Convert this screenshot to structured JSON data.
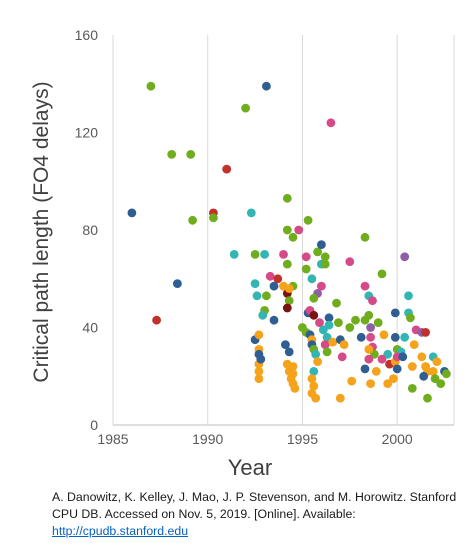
{
  "chart_data": {
    "type": "scatter",
    "xlabel": "Year",
    "ylabel": "Critical path length (FO4 delays)",
    "xlim": [
      1985,
      2003
    ],
    "ylim": [
      0,
      160
    ],
    "xticks": [
      1985,
      1990,
      1995,
      2000
    ],
    "yticks": [
      0,
      40,
      80,
      120,
      160
    ],
    "grid": "vertical",
    "legend": "none",
    "colors": {
      "blue": "#2e5e92",
      "green": "#70ad1e",
      "red": "#c0312b",
      "teal": "#33b5b3",
      "magenta": "#d64a88",
      "orange": "#f5a31a",
      "purple": "#8e5fa6",
      "dark": "#7a1414"
    },
    "points": [
      [
        1986.0,
        87,
        "blue"
      ],
      [
        1987.0,
        139,
        "green"
      ],
      [
        1987.3,
        43,
        "red"
      ],
      [
        1988.1,
        111,
        "green"
      ],
      [
        1988.4,
        58,
        "blue"
      ],
      [
        1989.1,
        111,
        "green"
      ],
      [
        1989.2,
        84,
        "green"
      ],
      [
        1990.3,
        87,
        "red"
      ],
      [
        1990.3,
        85,
        "green"
      ],
      [
        1991.0,
        105,
        "red"
      ],
      [
        1991.4,
        70,
        "teal"
      ],
      [
        1992.0,
        130,
        "green"
      ],
      [
        1992.3,
        87,
        "teal"
      ],
      [
        1992.5,
        70,
        "green"
      ],
      [
        1993.1,
        139,
        "blue"
      ],
      [
        1993.0,
        70,
        "teal"
      ],
      [
        1993.3,
        61,
        "magenta"
      ],
      [
        1993.5,
        57,
        "blue"
      ],
      [
        1993.1,
        53,
        "green"
      ],
      [
        1993.7,
        60,
        "red"
      ],
      [
        1992.5,
        58,
        "teal"
      ],
      [
        1992.6,
        53,
        "teal"
      ],
      [
        1992.5,
        35,
        "blue"
      ],
      [
        1993.0,
        47,
        "green"
      ],
      [
        1993.5,
        43,
        "blue"
      ],
      [
        1992.9,
        45,
        "teal"
      ],
      [
        1992.7,
        37,
        "orange"
      ],
      [
        1992.7,
        31,
        "orange"
      ],
      [
        1992.7,
        29,
        "blue"
      ],
      [
        1992.7,
        25,
        "orange"
      ],
      [
        1992.7,
        22,
        "orange"
      ],
      [
        1992.7,
        19,
        "orange"
      ],
      [
        1992.8,
        27,
        "blue"
      ],
      [
        1994.2,
        93,
        "green"
      ],
      [
        1994.2,
        80,
        "green"
      ],
      [
        1994.5,
        77,
        "green"
      ],
      [
        1994.8,
        80,
        "magenta"
      ],
      [
        1994.0,
        70,
        "magenta"
      ],
      [
        1994.2,
        66,
        "green"
      ],
      [
        1994.5,
        57,
        "green"
      ],
      [
        1994.2,
        54,
        "dark"
      ],
      [
        1994.0,
        57,
        "orange"
      ],
      [
        1994.3,
        56,
        "orange"
      ],
      [
        1994.3,
        51,
        "green"
      ],
      [
        1994.2,
        48,
        "dark"
      ],
      [
        1994.1,
        33,
        "blue"
      ],
      [
        1994.3,
        30,
        "blue"
      ],
      [
        1994.2,
        25,
        "orange"
      ],
      [
        1994.5,
        24,
        "orange"
      ],
      [
        1994.3,
        22,
        "orange"
      ],
      [
        1994.4,
        19,
        "orange"
      ],
      [
        1994.5,
        17,
        "orange"
      ],
      [
        1994.6,
        15,
        "orange"
      ],
      [
        1994.5,
        21,
        "orange"
      ],
      [
        1995.0,
        40,
        "green"
      ],
      [
        1995.3,
        84,
        "green"
      ],
      [
        1995.2,
        69,
        "magenta"
      ],
      [
        1995.2,
        64,
        "green"
      ],
      [
        1995.5,
        60,
        "teal"
      ],
      [
        1995.8,
        71,
        "green"
      ],
      [
        1996.0,
        74,
        "blue"
      ],
      [
        1996.0,
        66,
        "teal"
      ],
      [
        1996.2,
        69,
        "green"
      ],
      [
        1996.2,
        66,
        "green"
      ],
      [
        1996.0,
        57,
        "magenta"
      ],
      [
        1995.8,
        54,
        "purple"
      ],
      [
        1995.6,
        52,
        "green"
      ],
      [
        1995.3,
        46,
        "blue"
      ],
      [
        1995.4,
        47,
        "magenta"
      ],
      [
        1995.6,
        45,
        "dark"
      ],
      [
        1995.2,
        38,
        "green"
      ],
      [
        1995.4,
        37,
        "blue"
      ],
      [
        1995.5,
        35,
        "orange"
      ],
      [
        1995.5,
        33,
        "blue"
      ],
      [
        1995.6,
        31,
        "green"
      ],
      [
        1995.7,
        29,
        "teal"
      ],
      [
        1995.6,
        22,
        "teal"
      ],
      [
        1995.5,
        19,
        "orange"
      ],
      [
        1995.6,
        16,
        "orange"
      ],
      [
        1995.5,
        13,
        "orange"
      ],
      [
        1995.7,
        11,
        "orange"
      ],
      [
        1995.8,
        26,
        "orange"
      ],
      [
        1995.9,
        42,
        "magenta"
      ],
      [
        1996.1,
        39,
        "teal"
      ],
      [
        1996.3,
        36,
        "teal"
      ],
      [
        1996.2,
        33,
        "magenta"
      ],
      [
        1996.3,
        30,
        "green"
      ],
      [
        1996.4,
        44,
        "blue"
      ],
      [
        1996.4,
        41,
        "teal"
      ],
      [
        1996.6,
        34,
        "orange"
      ],
      [
        1996.5,
        124,
        "magenta"
      ],
      [
        1996.8,
        50,
        "green"
      ],
      [
        1996.9,
        42,
        "green"
      ],
      [
        1997.0,
        35,
        "blue"
      ],
      [
        1997.2,
        33,
        "orange"
      ],
      [
        1997.1,
        28,
        "magenta"
      ],
      [
        1997.0,
        11,
        "orange"
      ],
      [
        1997.5,
        67,
        "magenta"
      ],
      [
        1997.8,
        43,
        "green"
      ],
      [
        1997.5,
        40,
        "green"
      ],
      [
        1997.6,
        18,
        "orange"
      ],
      [
        1998.3,
        77,
        "green"
      ],
      [
        1998.3,
        57,
        "magenta"
      ],
      [
        1998.5,
        53,
        "teal"
      ],
      [
        1998.7,
        51,
        "magenta"
      ],
      [
        1998.5,
        45,
        "green"
      ],
      [
        1998.6,
        40,
        "purple"
      ],
      [
        1998.3,
        43,
        "green"
      ],
      [
        1998.1,
        36,
        "blue"
      ],
      [
        1998.6,
        36,
        "magenta"
      ],
      [
        1998.7,
        32,
        "magenta"
      ],
      [
        1998.8,
        29,
        "green"
      ],
      [
        1998.5,
        27,
        "magenta"
      ],
      [
        1998.3,
        23,
        "blue"
      ],
      [
        1998.6,
        17,
        "orange"
      ],
      [
        1998.9,
        22,
        "orange"
      ],
      [
        1998.5,
        31,
        "orange"
      ],
      [
        1999.2,
        62,
        "green"
      ],
      [
        1999.0,
        42,
        "green"
      ],
      [
        1999.3,
        37,
        "orange"
      ],
      [
        1999.5,
        29,
        "teal"
      ],
      [
        1999.2,
        27,
        "magenta"
      ],
      [
        1999.6,
        25,
        "red"
      ],
      [
        1999.9,
        26,
        "orange"
      ],
      [
        1999.8,
        19,
        "orange"
      ],
      [
        1999.5,
        17,
        "orange"
      ],
      [
        1999.9,
        46,
        "blue"
      ],
      [
        1999.9,
        36,
        "blue"
      ],
      [
        2000.0,
        31,
        "green"
      ],
      [
        2000.2,
        30,
        "teal"
      ],
      [
        2000.0,
        28,
        "magenta"
      ],
      [
        2000.0,
        23,
        "blue"
      ],
      [
        2000.4,
        69,
        "purple"
      ],
      [
        2000.6,
        53,
        "teal"
      ],
      [
        2000.6,
        46,
        "teal"
      ],
      [
        2000.7,
        44,
        "green"
      ],
      [
        2000.4,
        36,
        "teal"
      ],
      [
        2000.3,
        28,
        "blue"
      ],
      [
        2000.8,
        24,
        "orange"
      ],
      [
        2000.8,
        15,
        "green"
      ],
      [
        2001.0,
        39,
        "magenta"
      ],
      [
        2001.3,
        38,
        "purple"
      ],
      [
        2001.5,
        38,
        "red"
      ],
      [
        2001.5,
        24,
        "orange"
      ],
      [
        2001.3,
        28,
        "orange"
      ],
      [
        2001.6,
        22,
        "orange"
      ],
      [
        2001.4,
        20,
        "blue"
      ],
      [
        2001.6,
        11,
        "green"
      ],
      [
        2001.9,
        28,
        "teal"
      ],
      [
        2002.1,
        26,
        "orange"
      ],
      [
        2001.9,
        22,
        "orange"
      ],
      [
        2002.0,
        19,
        "green"
      ],
      [
        2002.3,
        17,
        "green"
      ],
      [
        2002.5,
        22,
        "blue"
      ],
      [
        2002.6,
        21,
        "green"
      ],
      [
        2000.9,
        33,
        "orange"
      ]
    ]
  },
  "citation": {
    "text": "A. Danowitz, K. Kelley, J. Mao, J. P. Stevenson, and M. Horowitz.  Stanford CPU DB. Accessed on  Nov. 5, 2019. [Online]. Available: ",
    "link": "http://cpudb.stanford.edu"
  }
}
